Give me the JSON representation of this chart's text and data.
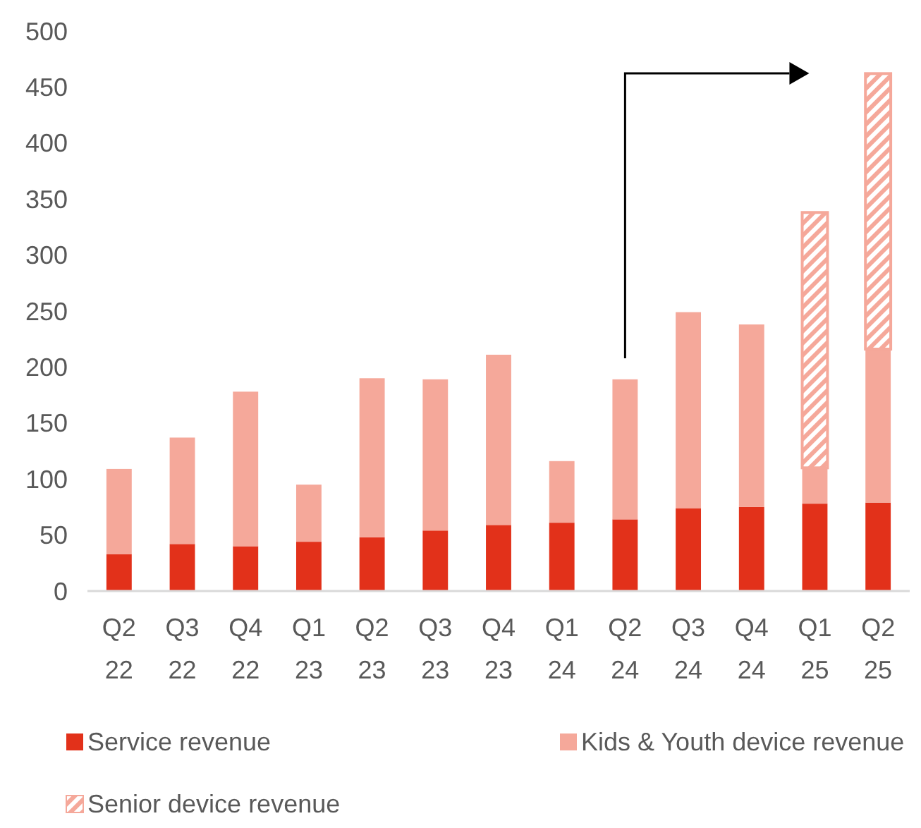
{
  "chart_data": {
    "type": "bar",
    "stacked": true,
    "categories": [
      "Q2 22",
      "Q3 22",
      "Q4 22",
      "Q1 23",
      "Q2 23",
      "Q3 23",
      "Q4 23",
      "Q1 24",
      "Q2 24",
      "Q3 24",
      "Q4 24",
      "Q1 25",
      "Q2 25"
    ],
    "series": [
      {
        "name": "Service revenue",
        "color": "#e2311a",
        "values": [
          33,
          42,
          40,
          44,
          48,
          54,
          59,
          61,
          64,
          74,
          75,
          78,
          79
        ]
      },
      {
        "name": "Kids & Youth device revenue",
        "color": "#f5a89a",
        "values": [
          76,
          95,
          138,
          51,
          142,
          135,
          152,
          55,
          125,
          175,
          163,
          32,
          137
        ]
      },
      {
        "name": "Senior device revenue",
        "color": "#f5a89a",
        "values": [
          null,
          null,
          null,
          null,
          null,
          null,
          null,
          null,
          null,
          null,
          null,
          228,
          246
        ]
      }
    ],
    "ylim": [
      0,
      500
    ],
    "yticks": [
      0,
      50,
      100,
      150,
      200,
      250,
      300,
      350,
      400,
      450,
      500
    ],
    "grid": false,
    "legend": "bottom"
  }
}
